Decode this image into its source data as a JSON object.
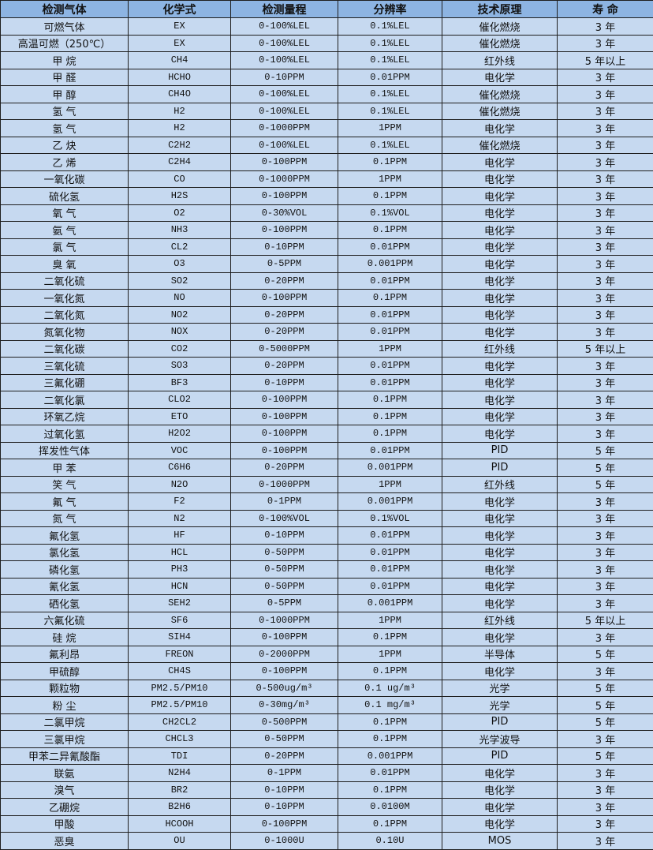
{
  "colors": {
    "header_bg": "#8db4e2",
    "row_bg": "#c6d9f0",
    "border": "#1f1f1f"
  },
  "headers": [
    "检测气体",
    "化学式",
    "检测量程",
    "分辨率",
    "技术原理",
    "寿 命"
  ],
  "rows": [
    [
      "可燃气体",
      "EX",
      "0-100%LEL",
      "0.1%LEL",
      "催化燃烧",
      "3 年"
    ],
    [
      "高温可燃（250℃）",
      "EX",
      "0-100%LEL",
      "0.1%LEL",
      "催化燃烧",
      "3 年"
    ],
    [
      "甲 烷",
      "CH4",
      "0-100%LEL",
      "0.1%LEL",
      "红外线",
      "5 年以上"
    ],
    [
      "甲 醛",
      "HCHO",
      "0-10PPM",
      "0.01PPM",
      "电化学",
      "3 年"
    ],
    [
      "甲 醇",
      "CH4O",
      "0-100%LEL",
      "0.1%LEL",
      "催化燃烧",
      "3 年"
    ],
    [
      "氢 气",
      "H2",
      "0-100%LEL",
      "0.1%LEL",
      "催化燃烧",
      "3 年"
    ],
    [
      "氢 气",
      "H2",
      "0-1000PPM",
      "1PPM",
      "电化学",
      "3 年"
    ],
    [
      "乙 炔",
      "C2H2",
      "0-100%LEL",
      "0.1%LEL",
      "催化燃烧",
      "3 年"
    ],
    [
      "乙 烯",
      "C2H4",
      "0-100PPM",
      "0.1PPM",
      "电化学",
      "3 年"
    ],
    [
      "一氧化碳",
      "CO",
      "0-1000PPM",
      "1PPM",
      "电化学",
      "3 年"
    ],
    [
      "硫化氢",
      "H2S",
      "0-100PPM",
      "0.1PPM",
      "电化学",
      "3 年"
    ],
    [
      "氧 气",
      "O2",
      "0-30%VOL",
      "0.1%VOL",
      "电化学",
      "3 年"
    ],
    [
      "氨 气",
      "NH3",
      "0-100PPM",
      "0.1PPM",
      "电化学",
      "3 年"
    ],
    [
      "氯 气",
      "CL2",
      "0-10PPM",
      "0.01PPM",
      "电化学",
      "3 年"
    ],
    [
      "臭 氧",
      "O3",
      "0-5PPM",
      "0.001PPM",
      "电化学",
      "3 年"
    ],
    [
      "二氧化硫",
      "SO2",
      "0-20PPM",
      "0.01PPM",
      "电化学",
      "3 年"
    ],
    [
      "一氧化氮",
      "NO",
      "0-100PPM",
      "0.1PPM",
      "电化学",
      "3 年"
    ],
    [
      "二氧化氮",
      "NO2",
      "0-20PPM",
      "0.01PPM",
      "电化学",
      "3 年"
    ],
    [
      "氮氧化物",
      "NOX",
      "0-20PPM",
      "0.01PPM",
      "电化学",
      "3 年"
    ],
    [
      "二氧化碳",
      "CO2",
      "0-5000PPM",
      "1PPM",
      "红外线",
      "5 年以上"
    ],
    [
      "三氧化硫",
      "SO3",
      "0-20PPM",
      "0.01PPM",
      "电化学",
      "3 年"
    ],
    [
      "三氟化硼",
      "BF3",
      "0-10PPM",
      "0.01PPM",
      "电化学",
      "3 年"
    ],
    [
      "二氧化氯",
      "CLO2",
      "0-100PPM",
      "0.1PPM",
      "电化学",
      "3 年"
    ],
    [
      "环氧乙烷",
      "ETO",
      "0-100PPM",
      "0.1PPM",
      "电化学",
      "3 年"
    ],
    [
      "过氧化氢",
      "H2O2",
      "0-100PPM",
      "0.1PPM",
      "电化学",
      "3 年"
    ],
    [
      "挥发性气体",
      "VOC",
      "0-100PPM",
      "0.01PPM",
      "PID",
      "5 年"
    ],
    [
      "甲 苯",
      "C6H6",
      "0-20PPM",
      "0.001PPM",
      "PID",
      "5 年"
    ],
    [
      "笑 气",
      "N2O",
      "0-1000PPM",
      "1PPM",
      "红外线",
      "5 年"
    ],
    [
      "氟 气",
      "F2",
      "0-1PPM",
      "0.001PPM",
      "电化学",
      "3 年"
    ],
    [
      "氮 气",
      "N2",
      "0-100%VOL",
      "0.1%VOL",
      "电化学",
      "3 年"
    ],
    [
      "氟化氢",
      "HF",
      "0-10PPM",
      "0.01PPM",
      "电化学",
      "3 年"
    ],
    [
      "氯化氢",
      "HCL",
      "0-50PPM",
      "0.01PPM",
      "电化学",
      "3 年"
    ],
    [
      "磷化氢",
      "PH3",
      "0-50PPM",
      "0.01PPM",
      "电化学",
      "3 年"
    ],
    [
      "氰化氢",
      "HCN",
      "0-50PPM",
      "0.01PPM",
      "电化学",
      "3 年"
    ],
    [
      "硒化氢",
      "SEH2",
      "0-5PPM",
      "0.001PPM",
      "电化学",
      "3 年"
    ],
    [
      "六氟化硫",
      "SF6",
      "0-1000PPM",
      "1PPM",
      "红外线",
      "5 年以上"
    ],
    [
      "硅 烷",
      "SIH4",
      "0-100PPM",
      "0.1PPM",
      "电化学",
      "3 年"
    ],
    [
      "氟利昂",
      "FREON",
      "0-2000PPM",
      "1PPM",
      "半导体",
      "5 年"
    ],
    [
      "甲硫醇",
      "CH4S",
      "0-100PPM",
      "0.1PPM",
      "电化学",
      "3 年"
    ],
    [
      "颗粒物",
      "PM2.5/PM10",
      "0-500ug/m³",
      "0.1 ug/m³",
      "光学",
      "5 年"
    ],
    [
      "粉 尘",
      "PM2.5/PM10",
      "0-30mg/m³",
      "0.1 mg/m³",
      "光学",
      "5 年"
    ],
    [
      "二氯甲烷",
      "CH2CL2",
      "0-500PPM",
      "0.1PPM",
      "PID",
      "5 年"
    ],
    [
      "三氯甲烷",
      "CHCL3",
      "0-50PPM",
      "0.1PPM",
      "光学波导",
      "3 年"
    ],
    [
      "甲苯二异氰酸酯",
      "TDI",
      "0-20PPM",
      "0.001PPM",
      "PID",
      "5 年"
    ],
    [
      "联氨",
      "N2H4",
      "0-1PPM",
      "0.01PPM",
      "电化学",
      "3 年"
    ],
    [
      "溴气",
      "BR2",
      "0-10PPM",
      "0.1PPM",
      "电化学",
      "3 年"
    ],
    [
      "乙硼烷",
      "B2H6",
      "0-10PPM",
      "0.0100M",
      "电化学",
      "3 年"
    ],
    [
      "甲酸",
      "HCOOH",
      "0-100PPM",
      "0.1PPM",
      "电化学",
      "3 年"
    ],
    [
      "恶臭",
      "OU",
      "0-1000U",
      "0.10U",
      "MOS",
      "3 年"
    ]
  ]
}
